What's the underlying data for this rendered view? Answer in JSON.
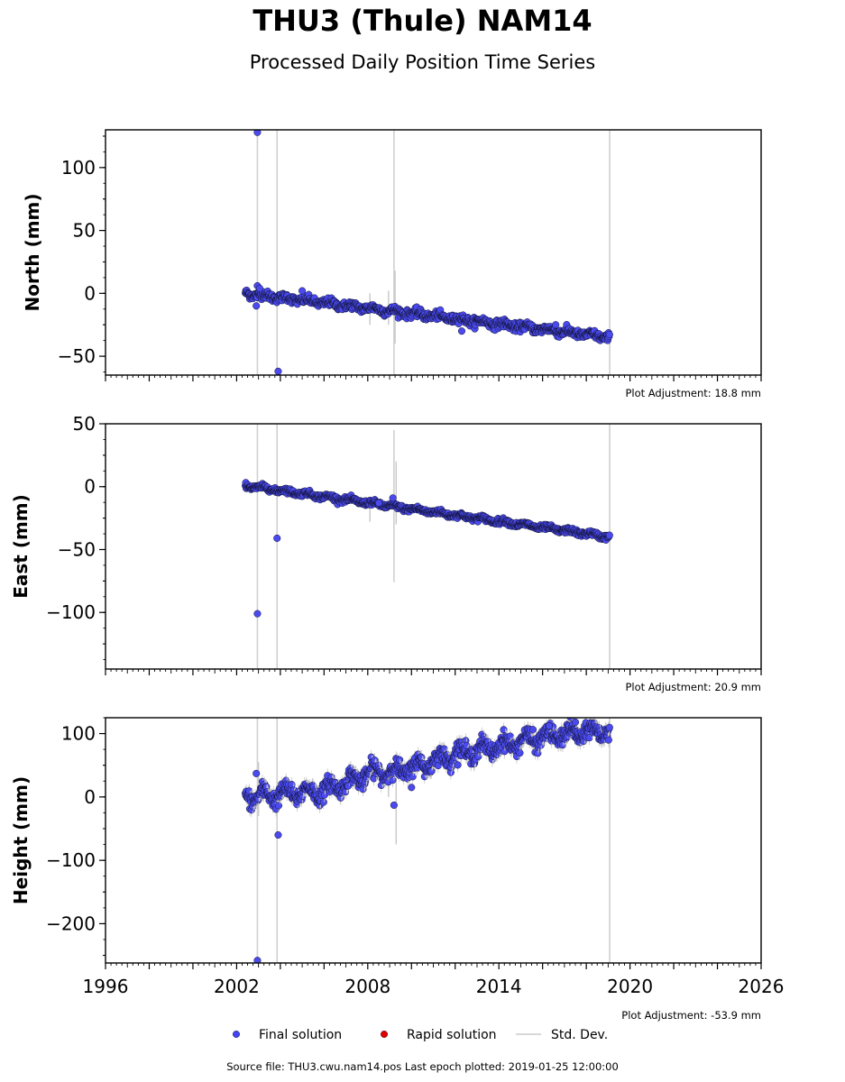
{
  "header": {
    "title": "THU3 (Thule) NAM14",
    "subtitle": "Processed Daily Position Time Series"
  },
  "footer": {
    "source": "Source file: THU3.cwu.nam14.pos  Last epoch plotted: 2019-01-25 12:00:00"
  },
  "legend": {
    "items": [
      {
        "label": "Final solution",
        "kind": "dot",
        "color": "#4444ee"
      },
      {
        "label": "Rapid solution",
        "kind": "dot",
        "color": "#dd0000"
      },
      {
        "label": "Std. Dev.",
        "kind": "line",
        "color": "#cccccc"
      }
    ]
  },
  "colors": {
    "final": "#4a4aee",
    "final_edge": "#111133",
    "rapid": "#dd0000",
    "stddev": "#c8c8c8",
    "vline": "#d0d0d0"
  },
  "chart_data": [
    {
      "type": "scatter",
      "ylabel": "North (mm)",
      "xlim": [
        1996,
        2026
      ],
      "ylim": [
        -65,
        130
      ],
      "yticks": [
        -50,
        0,
        50,
        100
      ],
      "adjustment": "Plot Adjustment: 18.8 mm",
      "series": [
        {
          "name": "Final solution",
          "trend": {
            "x_start": 2002.4,
            "x_end": 2019.07,
            "y_start": 0,
            "y_end": -35
          },
          "scatter_sd_mm": 1.6,
          "seasonal_mm": 1.2,
          "outliers": [
            [
              2002.95,
              128
            ],
            [
              2003.9,
              -62
            ],
            [
              2002.9,
              -10
            ],
            [
              2002.95,
              6
            ],
            [
              2003.05,
              4
            ],
            [
              2005.0,
              2
            ],
            [
              2016.6,
              -25
            ],
            [
              2012.3,
              -30
            ]
          ]
        }
      ],
      "stddev_vlines": [
        2002.95,
        2003.85,
        2009.2,
        2019.07
      ],
      "stddev_short": [
        [
          2009.25,
          -40,
          18
        ],
        [
          2008.95,
          -25,
          2
        ],
        [
          2008.1,
          -25,
          0
        ]
      ]
    },
    {
      "type": "scatter",
      "ylabel": "East (mm)",
      "xlim": [
        1996,
        2026
      ],
      "ylim": [
        -145,
        50
      ],
      "yticks": [
        -100,
        -50,
        0,
        50
      ],
      "adjustment": "Plot Adjustment: 20.9 mm",
      "series": [
        {
          "name": "Final solution",
          "trend": {
            "x_start": 2002.4,
            "x_end": 2019.07,
            "y_start": 1,
            "y_end": -40
          },
          "scatter_sd_mm": 1.0,
          "seasonal_mm": 1.0,
          "outliers": [
            [
              2002.95,
              -101
            ],
            [
              2003.85,
              -41
            ],
            [
              2009.15,
              -9
            ],
            [
              2008.5,
              -13
            ]
          ]
        }
      ],
      "stddev_vlines": [
        2002.95,
        2003.85,
        2019.07
      ],
      "stddev_short": [
        [
          2009.2,
          -76,
          45
        ],
        [
          2009.3,
          -30,
          20
        ],
        [
          2008.1,
          -28,
          -10
        ]
      ]
    },
    {
      "type": "scatter",
      "ylabel": "Height (mm)",
      "xlim": [
        1996,
        2026
      ],
      "ylim": [
        -262,
        125
      ],
      "yticks": [
        -200,
        -100,
        0,
        100
      ],
      "xticks": [
        1996,
        2002,
        2008,
        2014,
        2020,
        2026
      ],
      "adjustment": "Plot Adjustment: -53.9 mm",
      "series": [
        {
          "name": "Final solution",
          "trend_points": [
            [
              2002.4,
              0
            ],
            [
              2006.0,
              10
            ],
            [
              2008.3,
              40
            ],
            [
              2009.2,
              40
            ],
            [
              2010.0,
              45
            ],
            [
              2012.0,
              68
            ],
            [
              2014.0,
              80
            ],
            [
              2016.0,
              95
            ],
            [
              2019.07,
              105
            ]
          ],
          "scatter_sd_mm": 6.5,
          "seasonal_mm": 9,
          "outliers": [
            [
              2002.95,
              -258
            ],
            [
              2003.9,
              -60
            ],
            [
              2009.2,
              -13
            ],
            [
              2010.0,
              15
            ],
            [
              2002.9,
              37
            ],
            [
              2016.3,
              112
            ],
            [
              2017.5,
              118
            ]
          ]
        }
      ],
      "stddev_vlines": [
        2002.95,
        2003.85,
        2019.07
      ],
      "stddev_short": [
        [
          2009.3,
          -75,
          30
        ],
        [
          2008.95,
          0,
          40
        ],
        [
          2003.0,
          -30,
          55
        ]
      ]
    }
  ]
}
